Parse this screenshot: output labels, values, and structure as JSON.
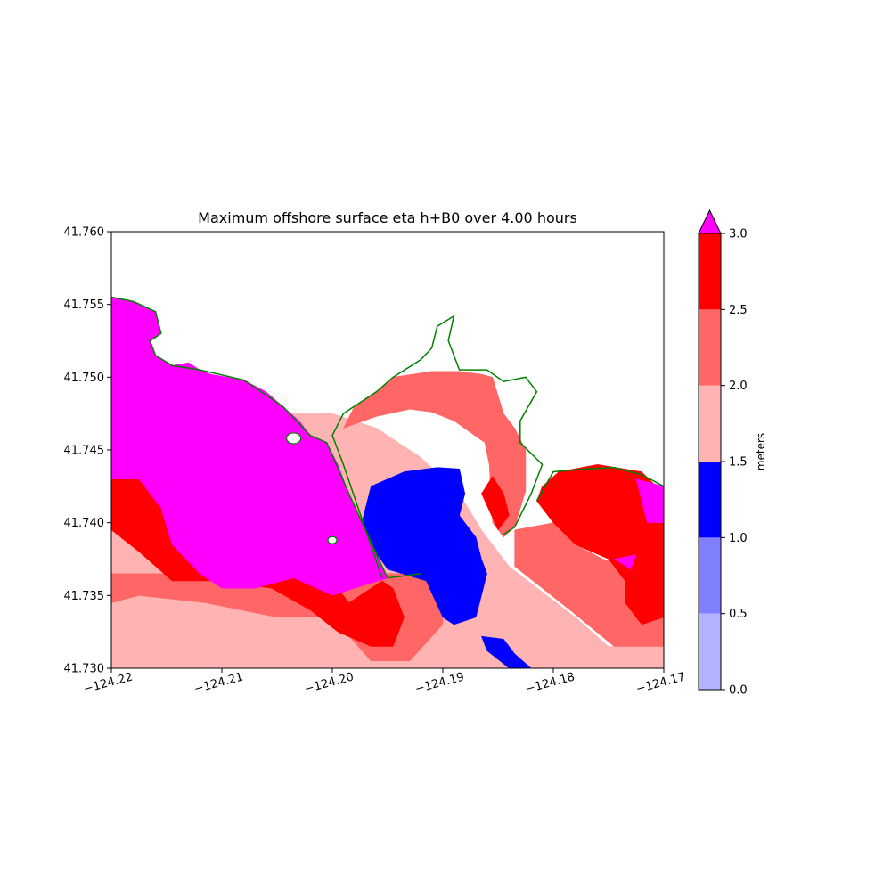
{
  "chart_data": {
    "type": "heatmap",
    "title": "Maximum offshore surface eta h+B0 over 4.00 hours",
    "xlabel": "",
    "ylabel": "",
    "xlim": [
      -124.22,
      -124.17
    ],
    "ylim": [
      41.73,
      41.76
    ],
    "x_ticks": [
      -124.22,
      -124.21,
      -124.2,
      -124.19,
      -124.18,
      -124.17
    ],
    "x_tick_labels": [
      "−124.22",
      "−124.21",
      "−124.20",
      "−124.19",
      "−124.18",
      "−124.17"
    ],
    "y_ticks": [
      41.73,
      41.735,
      41.74,
      41.745,
      41.75,
      41.755,
      41.76
    ],
    "y_tick_labels": [
      "41.730",
      "41.735",
      "41.740",
      "41.745",
      "41.750",
      "41.755",
      "41.760"
    ],
    "grid": false,
    "colorbar": {
      "label": "meters",
      "extend": "max",
      "levels": [
        0.0,
        0.5,
        1.0,
        1.5,
        2.0,
        2.5,
        3.0
      ],
      "tick_labels": [
        "0.0",
        "0.5",
        "1.0",
        "1.5",
        "2.0",
        "2.5",
        "3.0"
      ],
      "colors": [
        "#b3b3ff",
        "#8080ff",
        "#0000ff",
        "#ffb3b3",
        "#ff6666",
        "#ff0000"
      ],
      "over_color": "#ff00ff"
    },
    "shoreline_color": "#008000",
    "land_color": "#ffffff",
    "regions": [
      {
        "band": "1.5-2.0",
        "color": "#ffb3b3",
        "polygon": [
          [
            -124.22,
            41.73
          ],
          [
            -124.17,
            41.73
          ],
          [
            -124.17,
            41.7315
          ],
          [
            -124.175,
            41.7315
          ],
          [
            -124.178,
            41.7335
          ],
          [
            -124.184,
            41.737
          ],
          [
            -124.1865,
            41.7395
          ],
          [
            -124.1885,
            41.742
          ],
          [
            -124.192,
            41.7445
          ],
          [
            -124.196,
            41.7465
          ],
          [
            -124.2,
            41.7475
          ],
          [
            -124.22,
            41.7475
          ]
        ]
      },
      {
        "band": "2.0-2.5",
        "color": "#ff6666",
        "polygon": [
          [
            -124.22,
            41.7345
          ],
          [
            -124.2175,
            41.735
          ],
          [
            -124.2115,
            41.7345
          ],
          [
            -124.205,
            41.7335
          ],
          [
            -124.2,
            41.7335
          ],
          [
            -124.1965,
            41.7305
          ],
          [
            -124.193,
            41.7305
          ],
          [
            -124.19,
            41.733
          ],
          [
            -124.19,
            41.7365
          ],
          [
            -124.22,
            41.7365
          ]
        ]
      },
      {
        "band": "2.0-2.5",
        "color": "#ff6666",
        "polygon": [
          [
            -124.199,
            41.7465
          ],
          [
            -124.196,
            41.7473
          ],
          [
            -124.193,
            41.7478
          ],
          [
            -124.191,
            41.7476
          ],
          [
            -124.189,
            41.747
          ],
          [
            -124.1862,
            41.7455
          ],
          [
            -124.1858,
            41.744
          ],
          [
            -124.1857,
            41.7425
          ],
          [
            -124.1855,
            41.74
          ],
          [
            -124.1845,
            41.739
          ],
          [
            -124.1835,
            41.7397
          ],
          [
            -124.1825,
            41.7422
          ],
          [
            -124.1825,
            41.745
          ],
          [
            -124.1835,
            41.7465
          ],
          [
            -124.1845,
            41.7475
          ],
          [
            -124.1855,
            41.75
          ],
          [
            -124.1865,
            41.7502
          ],
          [
            -124.1885,
            41.7504
          ],
          [
            -124.191,
            41.7504
          ],
          [
            -124.1945,
            41.75
          ],
          [
            -124.196,
            41.749
          ],
          [
            -124.198,
            41.748
          ]
        ]
      },
      {
        "band": "2.0-2.5",
        "color": "#ff6666",
        "polygon": [
          [
            -124.1835,
            41.7395
          ],
          [
            -124.18,
            41.74
          ],
          [
            -124.178,
            41.7385
          ],
          [
            -124.1755,
            41.7375
          ],
          [
            -124.173,
            41.737
          ],
          [
            -124.17,
            41.736
          ],
          [
            -124.17,
            41.7315
          ],
          [
            -124.1745,
            41.7315
          ],
          [
            -124.1785,
            41.734
          ],
          [
            -124.1835,
            41.737
          ]
        ]
      },
      {
        "band": "2.5-3.0",
        "color": "#ff0000",
        "polygon": [
          [
            -124.22,
            41.7435
          ],
          [
            -124.2155,
            41.7435
          ],
          [
            -124.213,
            41.74
          ],
          [
            -124.2125,
            41.738
          ],
          [
            -124.2095,
            41.737
          ],
          [
            -124.2045,
            41.737
          ],
          [
            -124.2,
            41.736
          ],
          [
            -124.1985,
            41.7345
          ],
          [
            -124.1955,
            41.736
          ],
          [
            -124.1945,
            41.7355
          ],
          [
            -124.1935,
            41.7335
          ],
          [
            -124.1945,
            41.7315
          ],
          [
            -124.1965,
            41.7315
          ],
          [
            -124.1995,
            41.7325
          ],
          [
            -124.202,
            41.734
          ],
          [
            -124.2055,
            41.7355
          ],
          [
            -124.21,
            41.736
          ],
          [
            -124.2145,
            41.736
          ],
          [
            -124.2175,
            41.738
          ],
          [
            -124.22,
            41.7395
          ]
        ]
      },
      {
        "band": "2.5-3.0",
        "color": "#ff0000",
        "polygon": [
          [
            -124.1795,
            41.7435
          ],
          [
            -124.176,
            41.744
          ],
          [
            -124.172,
            41.7435
          ],
          [
            -124.17,
            41.742
          ],
          [
            -124.17,
            41.7335
          ],
          [
            -124.172,
            41.733
          ],
          [
            -124.1735,
            41.7345
          ],
          [
            -124.1735,
            41.736
          ],
          [
            -124.175,
            41.7375
          ],
          [
            -124.178,
            41.7385
          ],
          [
            -124.18,
            41.74
          ],
          [
            -124.1815,
            41.7415
          ],
          [
            -124.181,
            41.7425
          ]
        ]
      },
      {
        "band": "2.5-3.0",
        "color": "#ff0000",
        "polygon": [
          [
            -124.1865,
            41.742
          ],
          [
            -124.1855,
            41.7432
          ],
          [
            -124.1845,
            41.742
          ],
          [
            -124.184,
            41.7405
          ],
          [
            -124.185,
            41.7395
          ]
        ]
      },
      {
        "band": "1.0-1.5",
        "color": "#0000ff",
        "polygon": [
          [
            -124.1965,
            41.7425
          ],
          [
            -124.1935,
            41.7435
          ],
          [
            -124.1905,
            41.7438
          ],
          [
            -124.1885,
            41.7437
          ],
          [
            -124.188,
            41.742
          ],
          [
            -124.1885,
            41.7405
          ],
          [
            -124.187,
            41.739
          ],
          [
            -124.1865,
            41.7375
          ],
          [
            -124.186,
            41.7365
          ],
          [
            -124.1865,
            41.735
          ],
          [
            -124.187,
            41.7335
          ],
          [
            -124.189,
            41.733
          ],
          [
            -124.19,
            41.7335
          ],
          [
            -124.1915,
            41.736
          ],
          [
            -124.195,
            41.7368
          ],
          [
            -124.1975,
            41.7395
          ]
        ]
      },
      {
        "band": "1.0-1.5",
        "color": "#0000ff",
        "polygon": [
          [
            -124.1865,
            41.7322
          ],
          [
            -124.1845,
            41.732
          ],
          [
            -124.1835,
            41.731
          ],
          [
            -124.182,
            41.73
          ],
          [
            -124.184,
            41.73
          ],
          [
            -124.186,
            41.7312
          ]
        ]
      },
      {
        "band": "above 3.0",
        "color": "#ff00ff",
        "polygon": [
          [
            -124.22,
            41.7555
          ],
          [
            -124.218,
            41.7552
          ],
          [
            -124.216,
            41.7545
          ],
          [
            -124.2155,
            41.753
          ],
          [
            -124.2165,
            41.7525
          ],
          [
            -124.216,
            41.7515
          ],
          [
            -124.2145,
            41.7508
          ],
          [
            -124.213,
            41.751
          ],
          [
            -124.212,
            41.7505
          ],
          [
            -124.211,
            41.7502
          ],
          [
            -124.208,
            41.7498
          ],
          [
            -124.206,
            41.749
          ],
          [
            -124.2045,
            41.748
          ],
          [
            -124.203,
            41.747
          ],
          [
            -124.202,
            41.746
          ],
          [
            -124.2005,
            41.7455
          ],
          [
            -124.1995,
            41.744
          ],
          [
            -124.1985,
            41.742
          ],
          [
            -124.197,
            41.7395
          ],
          [
            -124.1955,
            41.737
          ],
          [
            -124.195,
            41.7362
          ],
          [
            -124.198,
            41.7355
          ],
          [
            -124.2,
            41.735
          ],
          [
            -124.2035,
            41.7362
          ],
          [
            -124.207,
            41.7355
          ],
          [
            -124.21,
            41.7355
          ],
          [
            -124.212,
            41.7365
          ],
          [
            -124.2145,
            41.7385
          ],
          [
            -124.2155,
            41.741
          ],
          [
            -124.2175,
            41.743
          ],
          [
            -124.22,
            41.743
          ]
        ]
      },
      {
        "band": "above 3.0",
        "color": "#ff00ff",
        "polygon": [
          [
            -124.1725,
            41.743
          ],
          [
            -124.17,
            41.7425
          ],
          [
            -124.17,
            41.74
          ],
          [
            -124.1715,
            41.74
          ],
          [
            -124.172,
            41.7415
          ]
        ]
      },
      {
        "band": "above 3.0",
        "color": "#ff00ff",
        "polygon": [
          [
            -124.1745,
            41.7375
          ],
          [
            -124.1725,
            41.7378
          ],
          [
            -124.173,
            41.7368
          ]
        ]
      }
    ]
  }
}
